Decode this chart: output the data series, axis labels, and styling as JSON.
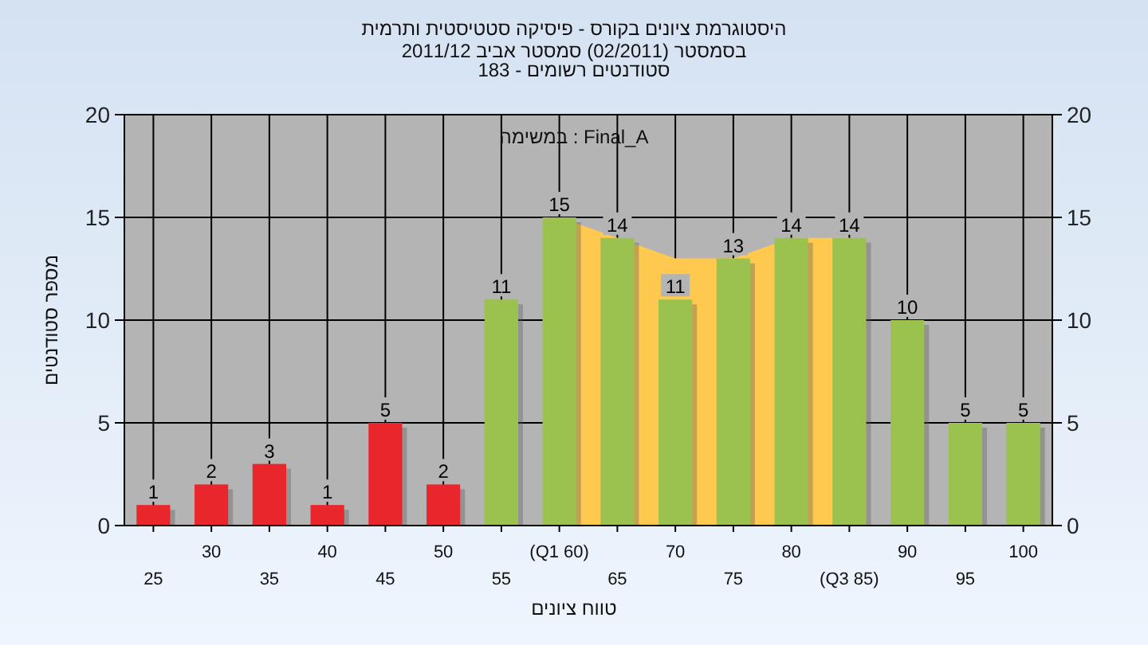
{
  "chart_data": {
    "type": "bar",
    "title": "היסטוגרמת ציונים בקורס - פיסיקה סטטיסטית ותרמית",
    "subtitle": "בסמסטר  (02/2011)  סמסטר אביב 2011/12\nסטודנטים רשומים - 183",
    "xlabel": "טווח ציונים",
    "ylabel": "מספר סטודנטים",
    "annotations": [
      "במשימה : Final_A"
    ],
    "categories": [
      "25",
      "30",
      "35",
      "40",
      "45",
      "50",
      "55",
      "(Q1 60)",
      "65",
      "70",
      "75",
      "80",
      "(Q3 85)",
      "90",
      "95",
      "100"
    ],
    "series": [
      {
        "type": "area",
        "color": "#ffc94f",
        "values": [
          null,
          null,
          null,
          null,
          null,
          null,
          null,
          15,
          14,
          13,
          13,
          14,
          14,
          null,
          null,
          null
        ]
      },
      {
        "value_labels": [
          "1",
          "2",
          "3",
          "1",
          "5",
          "2",
          "11",
          "15",
          "14",
          "11",
          "13",
          "14",
          "14",
          "10",
          "5",
          "5"
        ],
        "colors": [
          "#e8262b",
          "#e8262b",
          "#e8262b",
          "#e8262b",
          "#e8262b",
          "#e8262b",
          "#9bc24f",
          "#9bc24f",
          "#9bc24f",
          "#9bc24f",
          "#9bc24f",
          "#9bc24f",
          "#9bc24f",
          "#9bc24f",
          "#9bc24f",
          "#9bc24f"
        ],
        "values": [
          1,
          2,
          3,
          1,
          5,
          2,
          11,
          15,
          14,
          11,
          13,
          14,
          14,
          10,
          5,
          5
        ]
      }
    ],
    "ylim": [
      0,
      20
    ],
    "yticks": [
      0,
      5,
      10,
      15,
      20
    ],
    "y2lim": [
      0,
      20
    ],
    "y2ticks": [
      0,
      5,
      10,
      15,
      20
    ],
    "grid": true
  }
}
